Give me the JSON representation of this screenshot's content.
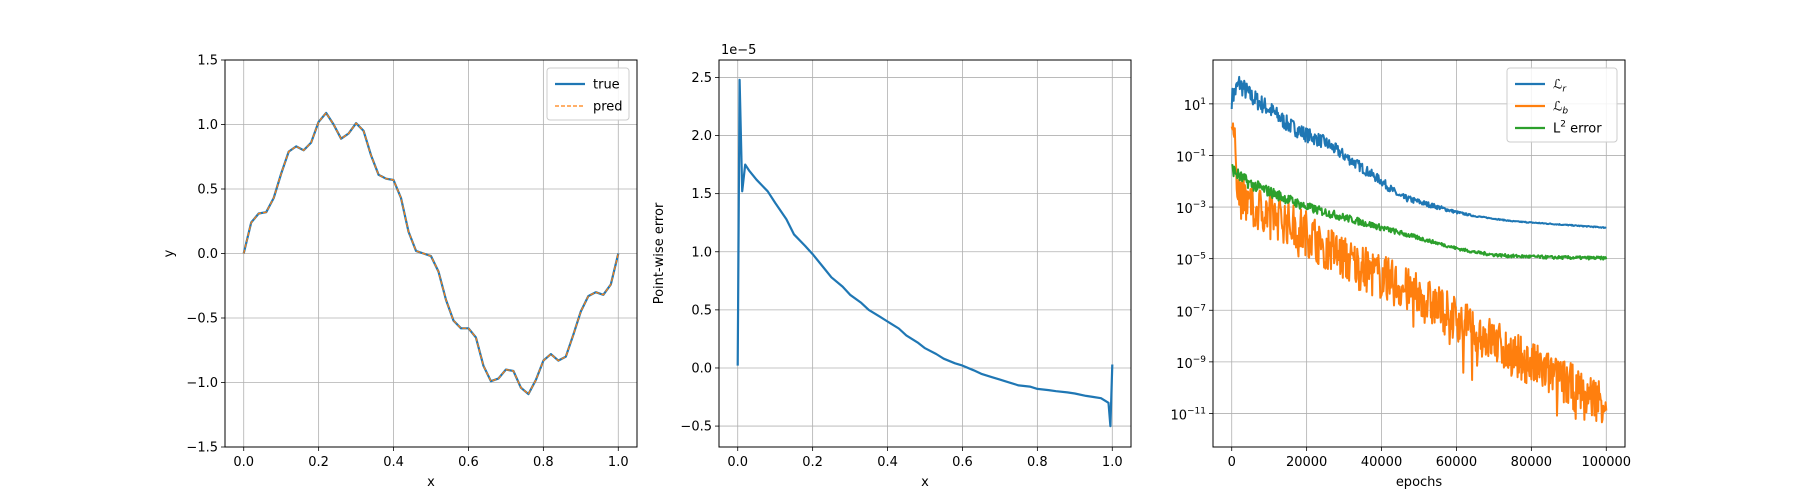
{
  "chart_data": [
    {
      "type": "line",
      "xlabel": "x",
      "ylabel": "y",
      "xlim": [
        -0.05,
        1.05
      ],
      "ylim": [
        -1.5,
        1.5
      ],
      "xticks": [
        0.0,
        0.2,
        0.4,
        0.6,
        0.8,
        1.0
      ],
      "xtick_labels": [
        "0.0",
        "0.2",
        "0.4",
        "0.6",
        "0.8",
        "1.0"
      ],
      "yticks": [
        -1.5,
        -1.0,
        -0.5,
        0.0,
        0.5,
        1.0,
        1.5
      ],
      "ytick_labels": [
        "−1.5",
        "−1.0",
        "−0.5",
        "0.0",
        "0.5",
        "1.0",
        "1.5"
      ],
      "grid": true,
      "legend_position": "top-right",
      "series": [
        {
          "name": "true",
          "color": "#1f77b4",
          "style": "solid",
          "x": [
            0.0,
            0.02,
            0.04,
            0.06,
            0.08,
            0.1,
            0.12,
            0.14,
            0.16,
            0.18,
            0.2,
            0.22,
            0.24,
            0.26,
            0.28,
            0.3,
            0.32,
            0.34,
            0.36,
            0.38,
            0.4,
            0.42,
            0.44,
            0.46,
            0.48,
            0.5,
            0.52,
            0.54,
            0.56,
            0.58,
            0.6,
            0.62,
            0.64,
            0.66,
            0.68,
            0.7,
            0.72,
            0.74,
            0.76,
            0.78,
            0.8,
            0.82,
            0.84,
            0.86,
            0.88,
            0.9,
            0.92,
            0.94,
            0.96,
            0.98,
            1.0
          ],
          "y": [
            0.0,
            0.24,
            0.31,
            0.32,
            0.43,
            0.62,
            0.79,
            0.83,
            0.8,
            0.86,
            1.02,
            1.09,
            1.0,
            0.89,
            0.93,
            1.01,
            0.95,
            0.76,
            0.61,
            0.58,
            0.57,
            0.43,
            0.17,
            0.02,
            0.0,
            -0.02,
            -0.14,
            -0.36,
            -0.52,
            -0.58,
            -0.58,
            -0.65,
            -0.87,
            -0.99,
            -0.97,
            -0.9,
            -0.91,
            -1.04,
            -1.09,
            -0.98,
            -0.83,
            -0.78,
            -0.83,
            -0.8,
            -0.63,
            -0.45,
            -0.33,
            -0.3,
            -0.32,
            -0.24,
            0.0
          ]
        },
        {
          "name": "pred",
          "color": "#ff7f0e",
          "style": "dashed",
          "x": [
            0.0,
            0.02,
            0.04,
            0.06,
            0.08,
            0.1,
            0.12,
            0.14,
            0.16,
            0.18,
            0.2,
            0.22,
            0.24,
            0.26,
            0.28,
            0.3,
            0.32,
            0.34,
            0.36,
            0.38,
            0.4,
            0.42,
            0.44,
            0.46,
            0.48,
            0.5,
            0.52,
            0.54,
            0.56,
            0.58,
            0.6,
            0.62,
            0.64,
            0.66,
            0.68,
            0.7,
            0.72,
            0.74,
            0.76,
            0.78,
            0.8,
            0.82,
            0.84,
            0.86,
            0.88,
            0.9,
            0.92,
            0.94,
            0.96,
            0.98,
            1.0
          ],
          "y": [
            0.0,
            0.24,
            0.31,
            0.32,
            0.43,
            0.62,
            0.79,
            0.83,
            0.8,
            0.86,
            1.02,
            1.09,
            1.0,
            0.89,
            0.93,
            1.01,
            0.95,
            0.76,
            0.61,
            0.58,
            0.57,
            0.43,
            0.17,
            0.02,
            0.0,
            -0.02,
            -0.14,
            -0.36,
            -0.52,
            -0.58,
            -0.58,
            -0.65,
            -0.87,
            -0.99,
            -0.97,
            -0.9,
            -0.91,
            -1.04,
            -1.09,
            -0.98,
            -0.83,
            -0.78,
            -0.83,
            -0.8,
            -0.63,
            -0.45,
            -0.33,
            -0.3,
            -0.32,
            -0.24,
            0.0
          ]
        }
      ]
    },
    {
      "type": "line",
      "xlabel": "x",
      "ylabel": "Point-wise error",
      "offset_text": "1e−5",
      "xlim": [
        -0.05,
        1.05
      ],
      "ylim": [
        -0.68,
        2.65
      ],
      "xticks": [
        0.0,
        0.2,
        0.4,
        0.6,
        0.8,
        1.0
      ],
      "xtick_labels": [
        "0.0",
        "0.2",
        "0.4",
        "0.6",
        "0.8",
        "1.0"
      ],
      "yticks": [
        -0.5,
        0.0,
        0.5,
        1.0,
        1.5,
        2.0,
        2.5
      ],
      "ytick_labels": [
        "−0.5",
        "0.0",
        "0.5",
        "1.0",
        "1.5",
        "2.0",
        "2.5"
      ],
      "grid": true,
      "series": [
        {
          "name": "",
          "color": "#1f77b4",
          "style": "solid",
          "x": [
            0.0,
            0.005,
            0.012,
            0.02,
            0.03,
            0.05,
            0.08,
            0.1,
            0.13,
            0.15,
            0.18,
            0.2,
            0.23,
            0.25,
            0.28,
            0.3,
            0.33,
            0.35,
            0.38,
            0.4,
            0.43,
            0.45,
            0.48,
            0.5,
            0.53,
            0.55,
            0.58,
            0.6,
            0.63,
            0.65,
            0.68,
            0.7,
            0.73,
            0.75,
            0.78,
            0.8,
            0.83,
            0.85,
            0.88,
            0.9,
            0.93,
            0.95,
            0.97,
            0.99,
            0.995,
            1.0
          ],
          "y": [
            0.02,
            2.48,
            1.52,
            1.75,
            1.7,
            1.62,
            1.52,
            1.42,
            1.28,
            1.15,
            1.05,
            0.98,
            0.86,
            0.78,
            0.7,
            0.63,
            0.56,
            0.5,
            0.44,
            0.4,
            0.34,
            0.28,
            0.22,
            0.17,
            0.12,
            0.08,
            0.04,
            0.02,
            -0.02,
            -0.05,
            -0.08,
            -0.1,
            -0.13,
            -0.15,
            -0.16,
            -0.18,
            -0.19,
            -0.2,
            -0.21,
            -0.22,
            -0.24,
            -0.25,
            -0.26,
            -0.3,
            -0.5,
            0.03
          ]
        }
      ]
    },
    {
      "type": "line",
      "xlabel": "epochs",
      "ylabel": "",
      "y_scale": "log",
      "xlim": [
        -5000,
        105000
      ],
      "ylim_exponent": [
        -12.3,
        2.7
      ],
      "xticks": [
        0,
        20000,
        40000,
        60000,
        80000,
        100000
      ],
      "xtick_labels": [
        "0",
        "20000",
        "40000",
        "60000",
        "80000",
        "100000"
      ],
      "yticks_exponent": [
        -11,
        -9,
        -7,
        -5,
        -3,
        -1,
        1
      ],
      "ytick_labels": [
        "10",
        "10",
        "10",
        "10",
        "10",
        "10",
        "10"
      ],
      "ytick_exponent_labels": [
        "−11",
        "−9",
        "−7",
        "−5",
        "−3",
        "−1",
        "1"
      ],
      "grid": true,
      "legend_position": "top-right",
      "series": [
        {
          "name": "ℒ",
          "name_sub": "r",
          "color": "#1f77b4",
          "x": [
            0,
            2000,
            5000,
            10000,
            15000,
            20000,
            25000,
            30000,
            35000,
            40000,
            45000,
            50000,
            55000,
            60000,
            65000,
            70000,
            75000,
            80000,
            85000,
            90000,
            95000,
            100000
          ],
          "y_log10": [
            1.2,
            1.8,
            1.3,
            0.8,
            0.2,
            -0.2,
            -0.5,
            -1.0,
            -1.5,
            -2.0,
            -2.6,
            -2.8,
            -3.0,
            -3.2,
            -3.35,
            -3.45,
            -3.55,
            -3.6,
            -3.65,
            -3.7,
            -3.75,
            -3.8
          ],
          "noise": 0.4
        },
        {
          "name": "ℒ",
          "name_sub": "b",
          "color": "#ff7f0e",
          "x": [
            0,
            2000,
            5000,
            10000,
            15000,
            20000,
            25000,
            30000,
            35000,
            40000,
            45000,
            50000,
            55000,
            60000,
            65000,
            70000,
            75000,
            80000,
            85000,
            90000,
            95000,
            100000
          ],
          "y_log10": [
            0.5,
            -2.5,
            -3.0,
            -3.2,
            -3.6,
            -4.0,
            -4.5,
            -5.0,
            -5.4,
            -5.7,
            -6.1,
            -6.5,
            -6.9,
            -7.3,
            -7.8,
            -8.2,
            -8.7,
            -9.1,
            -9.5,
            -9.9,
            -10.3,
            -10.5
          ],
          "noise": 0.9
        },
        {
          "name": "L",
          "name_sup": "2",
          "name_rest": " error",
          "color": "#2ca02c",
          "x": [
            0,
            2000,
            5000,
            10000,
            15000,
            20000,
            25000,
            30000,
            35000,
            40000,
            45000,
            50000,
            55000,
            60000,
            65000,
            70000,
            75000,
            80000,
            85000,
            90000,
            95000,
            100000
          ],
          "y_log10": [
            -1.5,
            -1.8,
            -2.1,
            -2.4,
            -2.7,
            -3.0,
            -3.2,
            -3.4,
            -3.6,
            -3.8,
            -4.0,
            -4.2,
            -4.4,
            -4.6,
            -4.75,
            -4.85,
            -4.9,
            -4.92,
            -4.95,
            -4.96,
            -4.97,
            -4.98
          ],
          "noise": 0.25
        }
      ]
    }
  ]
}
